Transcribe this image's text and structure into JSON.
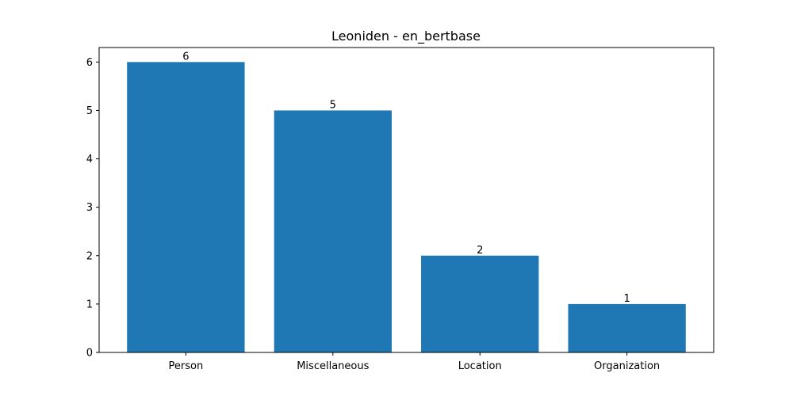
{
  "chart_data": {
    "type": "bar",
    "title": "Leoniden - en_bertbase",
    "categories": [
      "Person",
      "Miscellaneous",
      "Location",
      "Organization"
    ],
    "values": [
      6,
      5,
      2,
      1
    ],
    "data_labels": [
      "6",
      "5",
      "2",
      "1"
    ],
    "xlabel": "",
    "ylabel": "",
    "ylim": [
      0,
      6.3
    ],
    "yticks": [
      0,
      1,
      2,
      3,
      4,
      5,
      6
    ],
    "grid": false,
    "bar_color": "#1f77b4"
  }
}
